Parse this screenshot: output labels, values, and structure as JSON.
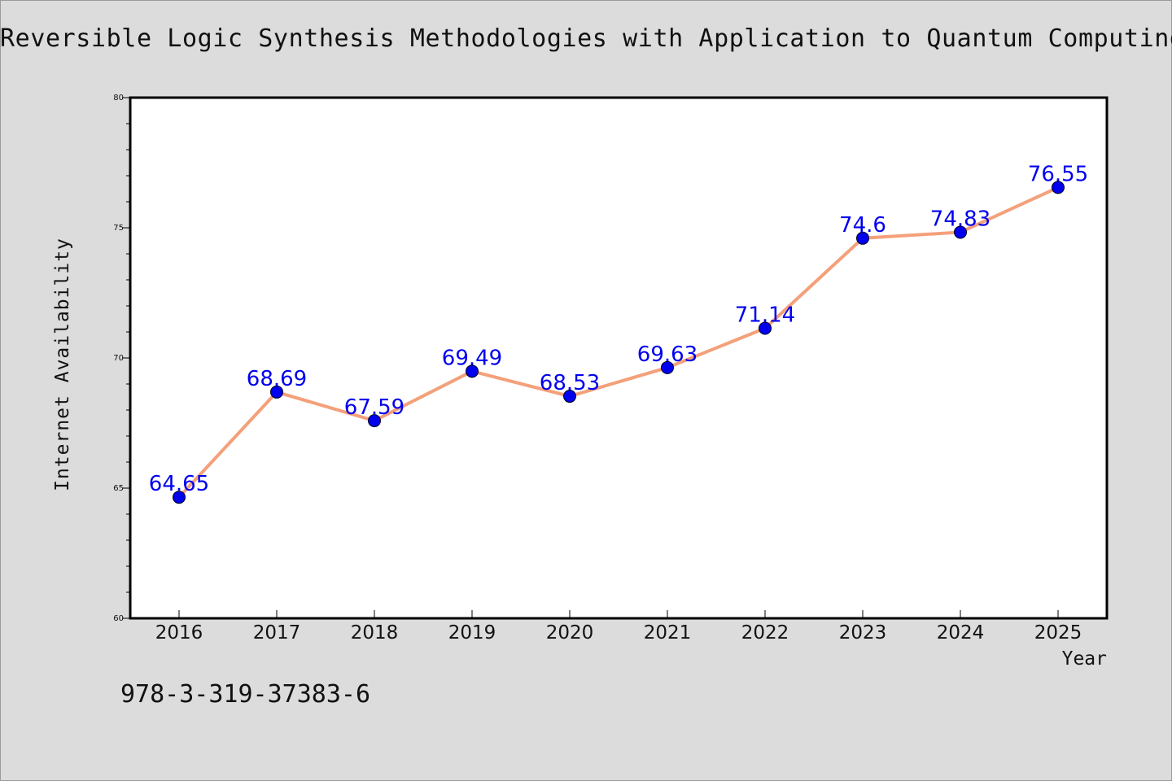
{
  "chart_data": {
    "type": "line",
    "title": "Reversible Logic Synthesis Methodologies with Application to Quantum Computing",
    "xlabel": "Year",
    "ylabel": "Internet Availability",
    "categories": [
      "2016",
      "2017",
      "2018",
      "2019",
      "2020",
      "2021",
      "2022",
      "2023",
      "2024",
      "2025"
    ],
    "values": [
      64.65,
      68.69,
      67.59,
      69.49,
      68.53,
      69.63,
      71.14,
      74.6,
      74.83,
      76.55
    ],
    "data_labels": [
      "64.65",
      "68.69",
      "67.59",
      "69.49",
      "68.53",
      "69.63",
      "71.14",
      "74.6",
      "74.83",
      "76.55"
    ],
    "ylim": [
      60,
      80
    ],
    "yticks": [
      "60",
      "65",
      "70",
      "75",
      "80"
    ],
    "grid": false,
    "legend": "none",
    "colors": {
      "line": "#f4a07a",
      "marker": "#0000ee",
      "label": "#0000ee",
      "background": "#dcdcdc",
      "plot_area": "#ffffff"
    }
  },
  "footnote": "978-3-319-37383-6"
}
